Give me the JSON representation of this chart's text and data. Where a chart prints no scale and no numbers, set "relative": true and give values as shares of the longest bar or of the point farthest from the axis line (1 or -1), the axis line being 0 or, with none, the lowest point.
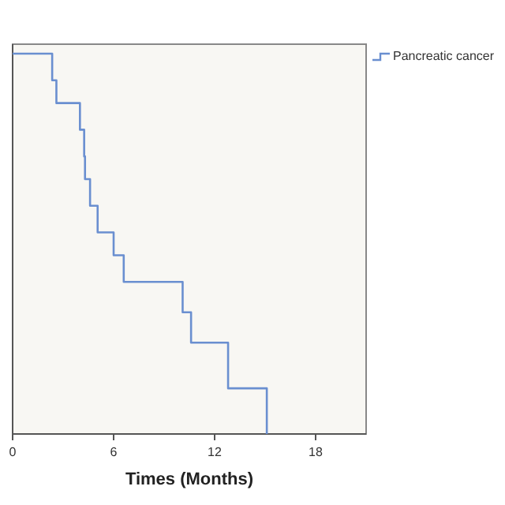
{
  "chart_data": {
    "type": "step",
    "relative": true,
    "xlabel": "Times (Months)",
    "xlim": [
      0,
      21
    ],
    "xticks": [
      0,
      6,
      12,
      18
    ],
    "legend": "top right",
    "grid": false,
    "x": [
      0,
      2.35,
      2.6,
      4.0,
      4.25,
      4.3,
      4.6,
      5.05,
      6.0,
      6.6,
      10.1,
      10.6,
      12.8,
      15.1
    ],
    "series": [
      {
        "name": "Pancreatic cancer",
        "color": "#6a8fd0",
        "values": [
          1,
          0.93,
          0.87,
          0.8,
          0.73,
          0.67,
          0.6,
          0.53,
          0.47,
          0.4,
          0.32,
          0.24,
          0.12,
          0
        ]
      }
    ]
  }
}
